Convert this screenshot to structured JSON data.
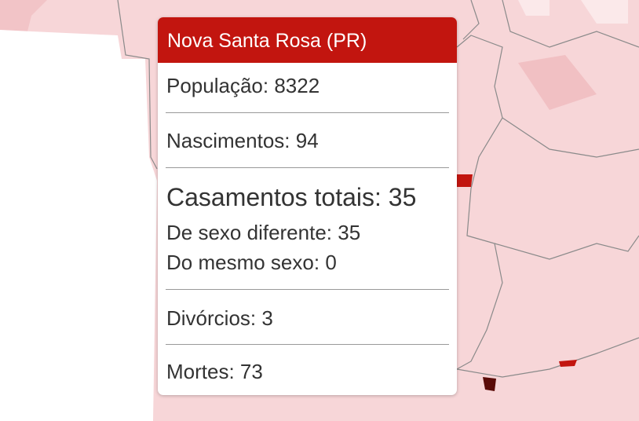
{
  "tooltip": {
    "title": "Nova Santa Rosa (PR)",
    "rows": [
      {
        "label": "População:",
        "value": 8322
      },
      {
        "label": "Nascimentos:",
        "value": 94
      },
      {
        "label": "Casamentos totais:",
        "value": 35
      },
      {
        "label": "De sexo diferente:",
        "value": 35
      },
      {
        "label": "Do mesmo sexo:",
        "value": 0
      },
      {
        "label": "Divórcios:",
        "value": 3
      },
      {
        "label": "Mortes:",
        "value": 73
      }
    ]
  }
}
